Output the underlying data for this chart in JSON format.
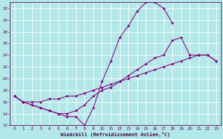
{
  "background_color": "#b2e8e8",
  "grid_color": "#c8e8e8",
  "line_color": "#880088",
  "marker_color": "#880088",
  "xlabel": "Windchill (Refroidissement éolien,°C)",
  "xlim": [
    -0.5,
    23.5
  ],
  "ylim": [
    12,
    33
  ],
  "yticks": [
    12,
    14,
    16,
    18,
    20,
    22,
    24,
    26,
    28,
    30,
    32
  ],
  "xticks": [
    0,
    1,
    2,
    3,
    4,
    5,
    6,
    7,
    8,
    9,
    10,
    11,
    12,
    13,
    14,
    15,
    16,
    17,
    18,
    19,
    20,
    21,
    22,
    23
  ],
  "line1_x": [
    0,
    1,
    2,
    3,
    4,
    5,
    6,
    7,
    8,
    9,
    10,
    11,
    12,
    13,
    14,
    15,
    16,
    17,
    18
  ],
  "line1_y": [
    17,
    16,
    15.5,
    15,
    14.5,
    14,
    13.5,
    13.5,
    12,
    15,
    19.5,
    23,
    27,
    29,
    31.5,
    33,
    33,
    32,
    29.5
  ],
  "line2_x": [
    0,
    1,
    2,
    3,
    4,
    5,
    6,
    7,
    8,
    9,
    10,
    11,
    12,
    13,
    14,
    15,
    16,
    17,
    18,
    19,
    20,
    21,
    22,
    23
  ],
  "line2_y": [
    17,
    16,
    15.5,
    15,
    14.5,
    14,
    14,
    14.5,
    15.5,
    17,
    18,
    18.5,
    19.5,
    20.5,
    21.5,
    22.5,
    23.5,
    24,
    26.5,
    27,
    24,
    24,
    24,
    23
  ],
  "line3_x": [
    0,
    1,
    2,
    3,
    4,
    5,
    6,
    7,
    8,
    9,
    10,
    11,
    12,
    13,
    14,
    15,
    16,
    17,
    18,
    19,
    20,
    21,
    22,
    23
  ],
  "line3_y": [
    17,
    16,
    16,
    16,
    16.5,
    16.5,
    17,
    17,
    17.5,
    18,
    18.5,
    19,
    19.5,
    20,
    20.5,
    21,
    21.5,
    22,
    22.5,
    23,
    23.5,
    24,
    24,
    23
  ]
}
